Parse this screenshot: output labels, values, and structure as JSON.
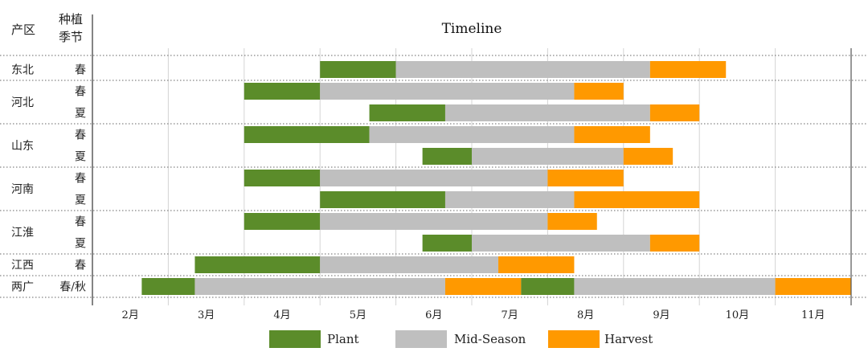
{
  "header": {
    "region": "产区",
    "season_line1": "种植",
    "season_line2": "季节"
  },
  "chart_data": {
    "type": "bar",
    "subtype": "gantt",
    "title": "Timeline",
    "months": [
      "2月",
      "3月",
      "4月",
      "5月",
      "6月",
      "7月",
      "8月",
      "9月",
      "10月",
      "11月"
    ],
    "xlim": [
      1.5,
      11.5
    ],
    "legend_position": "bottom",
    "series": [
      {
        "name": "Plant",
        "color": "#5b8c2a"
      },
      {
        "name": "Mid-Season",
        "color": "#bfbfbf"
      },
      {
        "name": "Harvest",
        "color": "#ff9900"
      }
    ],
    "rows": [
      {
        "region": "东北",
        "season": "春",
        "segments": [
          [
            1,
            4.5,
            5.5
          ],
          [
            2,
            5.5,
            8.85
          ],
          [
            3,
            8.85,
            9.85
          ]
        ]
      },
      {
        "region": "河北",
        "season": "春",
        "segments": [
          [
            1,
            3.5,
            4.5
          ],
          [
            2,
            4.5,
            7.85
          ],
          [
            3,
            7.85,
            8.5
          ]
        ]
      },
      {
        "region": "",
        "season": "夏",
        "segments": [
          [
            1,
            5.15,
            6.15
          ],
          [
            2,
            6.15,
            8.85
          ],
          [
            3,
            8.85,
            9.5
          ]
        ]
      },
      {
        "region": "山东",
        "season": "春",
        "segments": [
          [
            1,
            3.5,
            5.15
          ],
          [
            2,
            5.15,
            7.85
          ],
          [
            3,
            7.85,
            8.85
          ]
        ]
      },
      {
        "region": "",
        "season": "夏",
        "segments": [
          [
            1,
            5.85,
            6.5
          ],
          [
            2,
            6.5,
            8.5
          ],
          [
            3,
            8.5,
            9.15
          ]
        ]
      },
      {
        "region": "河南",
        "season": "春",
        "segments": [
          [
            1,
            3.5,
            4.5
          ],
          [
            2,
            4.5,
            7.5
          ],
          [
            3,
            7.5,
            8.5
          ]
        ]
      },
      {
        "region": "",
        "season": "夏",
        "segments": [
          [
            1,
            4.5,
            6.15
          ],
          [
            2,
            6.15,
            7.85
          ],
          [
            3,
            7.85,
            9.5
          ]
        ]
      },
      {
        "region": "江淮",
        "season": "春",
        "segments": [
          [
            1,
            3.5,
            4.5
          ],
          [
            2,
            4.5,
            7.5
          ],
          [
            3,
            7.5,
            8.15
          ]
        ]
      },
      {
        "region": "",
        "season": "夏",
        "segments": [
          [
            1,
            5.85,
            6.5
          ],
          [
            2,
            6.5,
            8.85
          ],
          [
            3,
            8.85,
            9.5
          ]
        ]
      },
      {
        "region": "江西",
        "season": "春",
        "segments": [
          [
            1,
            2.85,
            4.5
          ],
          [
            2,
            4.5,
            6.85
          ],
          [
            3,
            6.85,
            7.85
          ]
        ]
      },
      {
        "region": "两广",
        "season": "春/秋",
        "segments": [
          [
            1,
            2.15,
            2.85
          ],
          [
            2,
            2.85,
            6.15
          ],
          [
            3,
            6.15,
            7.15
          ],
          [
            1,
            7.15,
            7.85
          ],
          [
            2,
            7.85,
            10.5
          ],
          [
            3,
            10.5,
            11.5
          ]
        ]
      }
    ]
  }
}
